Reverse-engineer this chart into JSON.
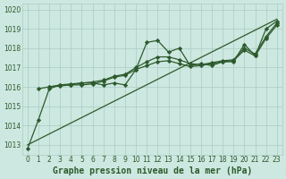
{
  "background_color": "#cde8e0",
  "grid_color": "#a8ccc4",
  "line_color": "#2d5a2d",
  "xlabel": "Graphe pression niveau de la mer (hPa)",
  "ylim": [
    1012.5,
    1020.3
  ],
  "xlim": [
    -0.5,
    23.5
  ],
  "yticks": [
    1013,
    1014,
    1015,
    1016,
    1017,
    1018,
    1019,
    1020
  ],
  "xticks": [
    0,
    1,
    2,
    3,
    4,
    5,
    6,
    7,
    8,
    9,
    10,
    11,
    12,
    13,
    14,
    15,
    16,
    17,
    18,
    19,
    20,
    21,
    22,
    23
  ],
  "series": [
    {
      "x": [
        0,
        1,
        2,
        3,
        4,
        5,
        6,
        7,
        8,
        9,
        10,
        11,
        12,
        13,
        14,
        15,
        16,
        17,
        18,
        19,
        20,
        21,
        22,
        23
      ],
      "y": [
        1012.8,
        1014.3,
        1015.9,
        1016.1,
        1016.1,
        1016.2,
        1016.2,
        1016.1,
        1016.2,
        1016.1,
        1016.9,
        1018.3,
        1018.4,
        1017.8,
        1018.0,
        1017.1,
        1017.2,
        1017.1,
        1017.3,
        1017.3,
        1018.2,
        1017.6,
        1019.0,
        1019.4
      ],
      "marker": "D",
      "markersize": 2.2,
      "linewidth": 0.9
    },
    {
      "x": [
        0,
        23
      ],
      "y": [
        1013.0,
        1019.5
      ],
      "marker": null,
      "markersize": 0,
      "linewidth": 0.9,
      "linestyle": "-"
    },
    {
      "x": [
        1,
        2,
        3,
        4,
        5,
        6,
        7,
        8,
        9,
        10,
        11,
        12,
        13,
        14,
        15,
        16,
        17,
        18,
        19,
        20,
        21,
        22,
        23
      ],
      "y": [
        1015.9,
        1016.0,
        1016.05,
        1016.1,
        1016.1,
        1016.15,
        1016.3,
        1016.5,
        1016.6,
        1016.9,
        1017.1,
        1017.3,
        1017.35,
        1017.2,
        1017.05,
        1017.1,
        1017.2,
        1017.3,
        1017.35,
        1017.9,
        1017.6,
        1018.5,
        1019.2
      ],
      "marker": "D",
      "markersize": 2.2,
      "linewidth": 0.9,
      "linestyle": "-"
    },
    {
      "x": [
        2,
        3,
        4,
        5,
        6,
        7,
        8,
        9,
        10,
        11,
        12,
        13,
        14,
        15,
        16,
        17,
        18,
        19,
        20,
        21,
        22,
        23
      ],
      "y": [
        1016.0,
        1016.1,
        1016.15,
        1016.2,
        1016.25,
        1016.35,
        1016.55,
        1016.65,
        1017.0,
        1017.3,
        1017.55,
        1017.55,
        1017.4,
        1017.2,
        1017.15,
        1017.25,
        1017.35,
        1017.4,
        1018.0,
        1017.7,
        1018.6,
        1019.3
      ],
      "marker": "D",
      "markersize": 2.2,
      "linewidth": 0.9,
      "linestyle": "-"
    }
  ],
  "tick_fontsize": 5.5,
  "label_fontsize": 7,
  "label_fontweight": "bold",
  "label_fontfamily": "monospace"
}
